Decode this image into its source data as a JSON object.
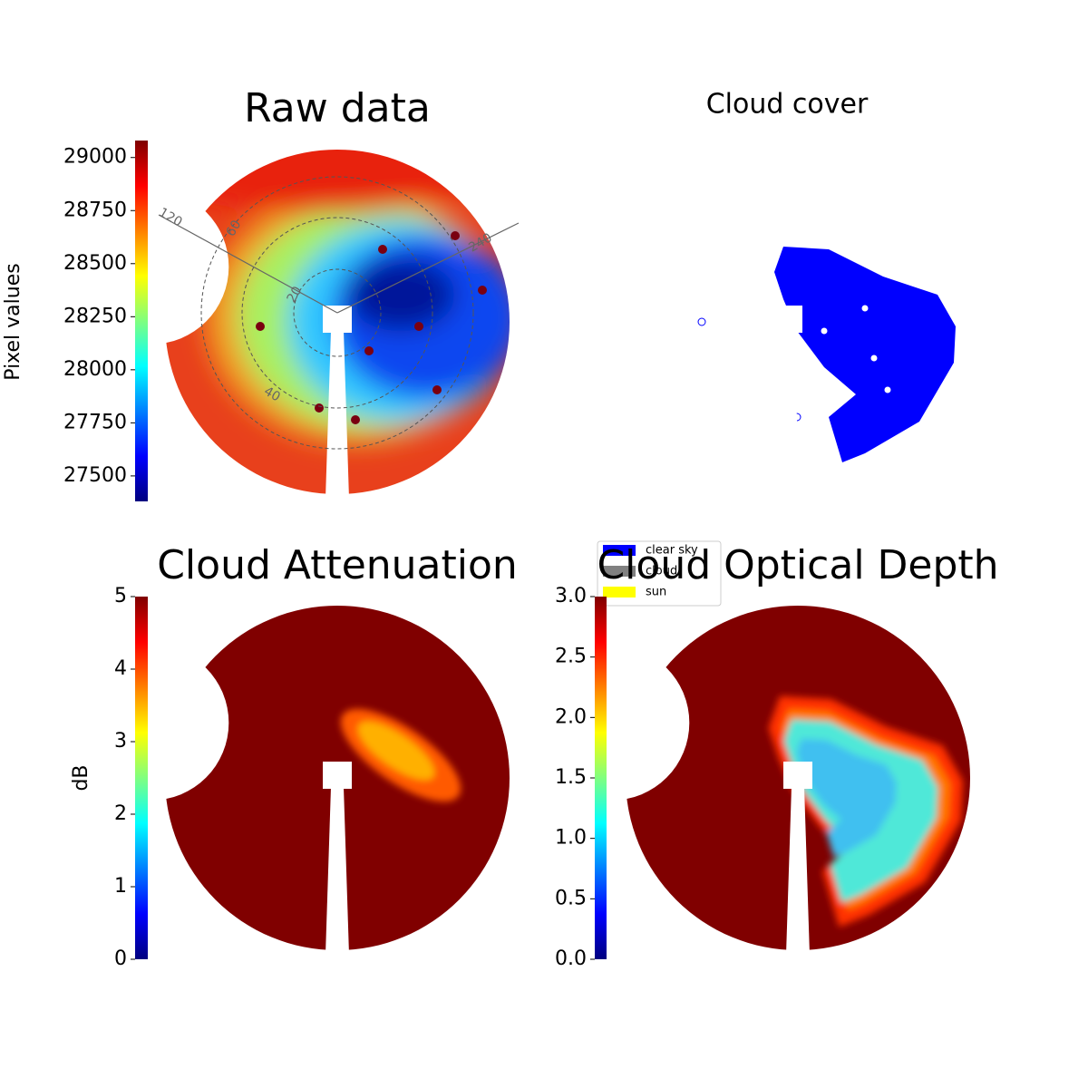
{
  "chart_data": [
    {
      "type": "image",
      "title": "Raw data",
      "colormap": "jet",
      "colorbar_label": "Pixel values",
      "ylim": [
        27380,
        29080
      ],
      "yticks": [
        27500,
        27750,
        28000,
        28250,
        28500,
        28750,
        29000
      ],
      "annotations": [
        "120",
        "60",
        "20",
        "40",
        "240"
      ]
    },
    {
      "type": "image",
      "title": "Cloud cover",
      "series": [
        {
          "name": "clear sky",
          "color": "#0000ff"
        },
        {
          "name": "cloud",
          "color": "#808080"
        },
        {
          "name": "sun",
          "color": "#ffff00"
        }
      ]
    },
    {
      "type": "image",
      "title": "Cloud Attenuation",
      "colormap": "jet",
      "colorbar_label": "dB",
      "ylim": [
        0,
        5
      ],
      "yticks": [
        0,
        1,
        2,
        3,
        4,
        5
      ]
    },
    {
      "type": "image",
      "title": "Cloud Optical Depth",
      "colormap": "jet",
      "ylim": [
        0,
        3
      ],
      "yticks": [
        {
          "value": 0,
          "label": "0.0"
        },
        {
          "value": 0.5,
          "label": "0.5"
        },
        {
          "value": 1,
          "label": "1.0"
        },
        {
          "value": 1.5,
          "label": "1.5"
        },
        {
          "value": 2,
          "label": "2.0"
        },
        {
          "value": 2.5,
          "label": "2.5"
        },
        {
          "value": 3,
          "label": "3.0"
        }
      ]
    }
  ]
}
